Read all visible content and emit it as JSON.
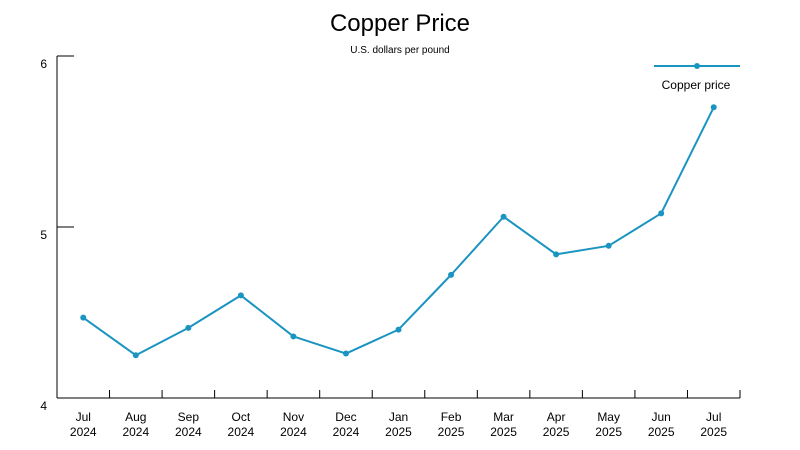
{
  "chart_data": {
    "type": "line",
    "title": "Copper Price",
    "subtitle": "U.S. dollars per pound",
    "categories": [
      [
        "Jul",
        "2024"
      ],
      [
        "Aug",
        "2024"
      ],
      [
        "Sep",
        "2024"
      ],
      [
        "Oct",
        "2024"
      ],
      [
        "Nov",
        "2024"
      ],
      [
        "Dec",
        "2024"
      ],
      [
        "Jan",
        "2025"
      ],
      [
        "Feb",
        "2025"
      ],
      [
        "Mar",
        "2025"
      ],
      [
        "Apr",
        "2025"
      ],
      [
        "May",
        "2025"
      ],
      [
        "Jun",
        "2025"
      ],
      [
        "Jul",
        "2025"
      ]
    ],
    "series": [
      {
        "name": "Copper price",
        "color": "#1a94c0",
        "values": [
          4.47,
          4.25,
          4.41,
          4.6,
          4.36,
          4.26,
          4.4,
          4.72,
          5.06,
          4.84,
          4.89,
          5.08,
          5.7
        ]
      }
    ],
    "yticks": [
      "6",
      "5",
      "4"
    ],
    "ylim": [
      4,
      6
    ],
    "grid": false,
    "legend_position": "top-right"
  }
}
